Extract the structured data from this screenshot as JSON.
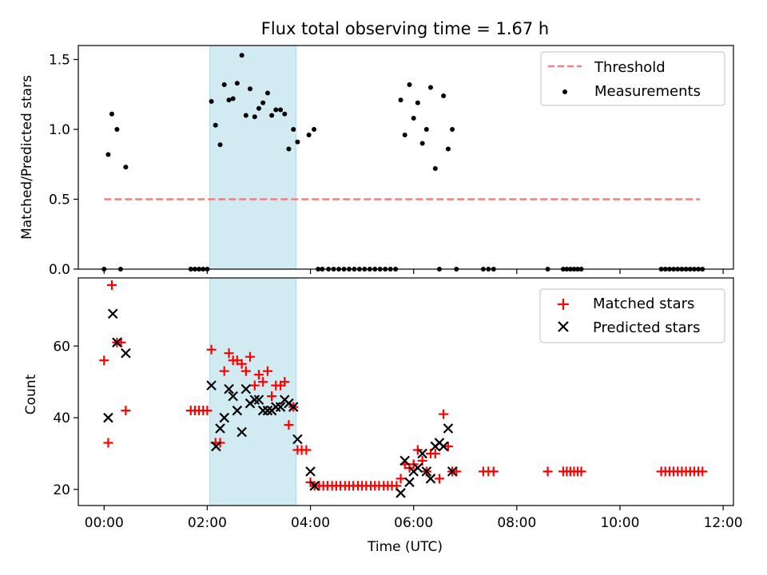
{
  "chart_data": [
    {
      "type": "scatter",
      "title": "Flux total observing time = 1.67 h",
      "xlabel": "",
      "ylabel": "Matched/Predicted stars",
      "xlim": [
        -0.5,
        12.2
      ],
      "ylim": [
        0,
        1.6
      ],
      "yticks": [
        0.0,
        0.5,
        1.0,
        1.5
      ],
      "ytick_labels": [
        "0.0",
        "0.5",
        "1.0",
        "1.5"
      ],
      "xticks": [
        0,
        2,
        4,
        6,
        8,
        10,
        12
      ],
      "shaded_region": {
        "x0": 2.05,
        "x1": 3.72,
        "color": "#add8e6"
      },
      "legend": {
        "placement": "upper-right",
        "entries": [
          "Threshold",
          "Measurements"
        ]
      },
      "threshold": {
        "name": "Threshold",
        "x": [
          0.0,
          11.55
        ],
        "y": 0.5,
        "color": "#f08080",
        "style": "dashed"
      },
      "series": [
        {
          "name": "Measurements",
          "color": "#000000",
          "marker": "dot",
          "points": [
            [
              0.0,
              0.0
            ],
            [
              0.08,
              0.82
            ],
            [
              0.15,
              1.11
            ],
            [
              0.25,
              1.0
            ],
            [
              0.32,
              0.0
            ],
            [
              0.42,
              0.73
            ],
            [
              1.68,
              0.0
            ],
            [
              1.76,
              0.0
            ],
            [
              1.84,
              0.0
            ],
            [
              1.92,
              0.0
            ],
            [
              2.0,
              0.0
            ],
            [
              2.08,
              1.2
            ],
            [
              2.16,
              1.03
            ],
            [
              2.25,
              0.89
            ],
            [
              2.33,
              1.32
            ],
            [
              2.42,
              1.21
            ],
            [
              2.5,
              1.22
            ],
            [
              2.58,
              1.33
            ],
            [
              2.67,
              1.53
            ],
            [
              2.75,
              1.1
            ],
            [
              2.83,
              1.29
            ],
            [
              2.92,
              1.09
            ],
            [
              3.0,
              1.15
            ],
            [
              3.08,
              1.19
            ],
            [
              3.17,
              1.26
            ],
            [
              3.25,
              1.1
            ],
            [
              3.33,
              1.14
            ],
            [
              3.42,
              1.14
            ],
            [
              3.5,
              1.11
            ],
            [
              3.58,
              0.86
            ],
            [
              3.67,
              1.0
            ],
            [
              3.75,
              0.91
            ],
            [
              3.97,
              0.96
            ],
            [
              4.07,
              1.0
            ],
            [
              4.15,
              0.0
            ],
            [
              4.23,
              0.0
            ],
            [
              4.35,
              0.0
            ],
            [
              4.45,
              0.0
            ],
            [
              4.55,
              0.0
            ],
            [
              4.65,
              0.0
            ],
            [
              4.75,
              0.0
            ],
            [
              4.85,
              0.0
            ],
            [
              4.95,
              0.0
            ],
            [
              5.05,
              0.0
            ],
            [
              5.15,
              0.0
            ],
            [
              5.25,
              0.0
            ],
            [
              5.35,
              0.0
            ],
            [
              5.45,
              0.0
            ],
            [
              5.55,
              0.0
            ],
            [
              5.65,
              0.0
            ],
            [
              5.75,
              1.21
            ],
            [
              5.83,
              0.96
            ],
            [
              5.92,
              1.32
            ],
            [
              6.0,
              1.08
            ],
            [
              6.08,
              1.19
            ],
            [
              6.17,
              0.9
            ],
            [
              6.25,
              1.0
            ],
            [
              6.33,
              1.3
            ],
            [
              6.42,
              0.72
            ],
            [
              6.5,
              0.0
            ],
            [
              6.58,
              1.24
            ],
            [
              6.67,
              0.86
            ],
            [
              6.75,
              1.0
            ],
            [
              6.83,
              0.0
            ],
            [
              7.35,
              0.0
            ],
            [
              7.45,
              0.0
            ],
            [
              7.55,
              0.0
            ],
            [
              8.6,
              0.0
            ],
            [
              8.9,
              0.0
            ],
            [
              8.97,
              0.0
            ],
            [
              9.04,
              0.0
            ],
            [
              9.11,
              0.0
            ],
            [
              9.18,
              0.0
            ],
            [
              9.25,
              0.0
            ],
            [
              10.8,
              0.0
            ],
            [
              10.88,
              0.0
            ],
            [
              10.96,
              0.0
            ],
            [
              11.04,
              0.0
            ],
            [
              11.12,
              0.0
            ],
            [
              11.2,
              0.0
            ],
            [
              11.28,
              0.0
            ],
            [
              11.36,
              0.0
            ],
            [
              11.44,
              0.0
            ],
            [
              11.52,
              0.0
            ],
            [
              11.6,
              0.0
            ]
          ]
        }
      ]
    },
    {
      "type": "scatter",
      "title": "",
      "xlabel": "Time (UTC)",
      "ylabel": "Count",
      "xlim": [
        -0.5,
        12.2
      ],
      "ylim": [
        15.5,
        79
      ],
      "yticks": [
        20,
        40,
        60
      ],
      "ytick_labels": [
        "20",
        "40",
        "60"
      ],
      "xticks": [
        0,
        2,
        4,
        6,
        8,
        10,
        12
      ],
      "xtick_labels": [
        "00:00",
        "02:00",
        "04:00",
        "06:00",
        "08:00",
        "10:00",
        "12:00"
      ],
      "shaded_region": {
        "x0": 2.05,
        "x1": 3.72,
        "color": "#add8e6"
      },
      "legend": {
        "placement": "upper-right",
        "entries": [
          "Matched stars",
          "Predicted stars"
        ]
      },
      "series": [
        {
          "name": "Matched stars",
          "color": "#ff0000",
          "marker": "plus",
          "points": [
            [
              0.0,
              56
            ],
            [
              0.08,
              33
            ],
            [
              0.15,
              77
            ],
            [
              0.25,
              61
            ],
            [
              0.33,
              61
            ],
            [
              0.42,
              42
            ],
            [
              1.68,
              42
            ],
            [
              1.76,
              42
            ],
            [
              1.84,
              42
            ],
            [
              1.92,
              42
            ],
            [
              2.0,
              42
            ],
            [
              2.08,
              59
            ],
            [
              2.16,
              33
            ],
            [
              2.25,
              33
            ],
            [
              2.33,
              53
            ],
            [
              2.42,
              58
            ],
            [
              2.5,
              56
            ],
            [
              2.58,
              56
            ],
            [
              2.67,
              55
            ],
            [
              2.75,
              53
            ],
            [
              2.83,
              57
            ],
            [
              2.92,
              49
            ],
            [
              3.0,
              52
            ],
            [
              3.08,
              50
            ],
            [
              3.17,
              53
            ],
            [
              3.25,
              46
            ],
            [
              3.33,
              49
            ],
            [
              3.42,
              49
            ],
            [
              3.5,
              50
            ],
            [
              3.58,
              38
            ],
            [
              3.67,
              43
            ],
            [
              3.75,
              31
            ],
            [
              3.83,
              31
            ],
            [
              3.92,
              31
            ],
            [
              4.0,
              22
            ],
            [
              4.08,
              21
            ],
            [
              4.17,
              21
            ],
            [
              4.25,
              21
            ],
            [
              4.33,
              21
            ],
            [
              4.42,
              21
            ],
            [
              4.5,
              21
            ],
            [
              4.58,
              21
            ],
            [
              4.67,
              21
            ],
            [
              4.75,
              21
            ],
            [
              4.83,
              21
            ],
            [
              4.92,
              21
            ],
            [
              5.0,
              21
            ],
            [
              5.08,
              21
            ],
            [
              5.17,
              21
            ],
            [
              5.25,
              21
            ],
            [
              5.33,
              21
            ],
            [
              5.42,
              21
            ],
            [
              5.5,
              21
            ],
            [
              5.58,
              21
            ],
            [
              5.67,
              21
            ],
            [
              5.75,
              23
            ],
            [
              5.83,
              27
            ],
            [
              5.92,
              26
            ],
            [
              6.0,
              27
            ],
            [
              6.08,
              31
            ],
            [
              6.17,
              28
            ],
            [
              6.25,
              25
            ],
            [
              6.33,
              30
            ],
            [
              6.42,
              30
            ],
            [
              6.5,
              23
            ],
            [
              6.58,
              41
            ],
            [
              6.67,
              32
            ],
            [
              6.75,
              25
            ],
            [
              6.83,
              25
            ],
            [
              7.35,
              25
            ],
            [
              7.45,
              25
            ],
            [
              7.55,
              25
            ],
            [
              8.6,
              25
            ],
            [
              8.9,
              25
            ],
            [
              8.97,
              25
            ],
            [
              9.04,
              25
            ],
            [
              9.11,
              25
            ],
            [
              9.18,
              25
            ],
            [
              9.25,
              25
            ],
            [
              10.8,
              25
            ],
            [
              10.88,
              25
            ],
            [
              10.96,
              25
            ],
            [
              11.04,
              25
            ],
            [
              11.12,
              25
            ],
            [
              11.2,
              25
            ],
            [
              11.28,
              25
            ],
            [
              11.36,
              25
            ],
            [
              11.44,
              25
            ],
            [
              11.52,
              25
            ],
            [
              11.6,
              25
            ]
          ]
        },
        {
          "name": "Predicted stars",
          "color": "#000000",
          "marker": "x",
          "points": [
            [
              0.08,
              40
            ],
            [
              0.17,
              69
            ],
            [
              0.25,
              61
            ],
            [
              0.42,
              58
            ],
            [
              2.08,
              49
            ],
            [
              2.17,
              32
            ],
            [
              2.25,
              37
            ],
            [
              2.33,
              40
            ],
            [
              2.42,
              48
            ],
            [
              2.5,
              46
            ],
            [
              2.58,
              42
            ],
            [
              2.67,
              36
            ],
            [
              2.75,
              48
            ],
            [
              2.83,
              44
            ],
            [
              2.92,
              45
            ],
            [
              3.0,
              45
            ],
            [
              3.08,
              42
            ],
            [
              3.17,
              42
            ],
            [
              3.25,
              42
            ],
            [
              3.33,
              43
            ],
            [
              3.42,
              43
            ],
            [
              3.5,
              45
            ],
            [
              3.58,
              44
            ],
            [
              3.67,
              43
            ],
            [
              3.75,
              34
            ],
            [
              4.0,
              25
            ],
            [
              4.08,
              21
            ],
            [
              5.75,
              19
            ],
            [
              5.83,
              28
            ],
            [
              5.92,
              22
            ],
            [
              6.0,
              25
            ],
            [
              6.08,
              26
            ],
            [
              6.17,
              30
            ],
            [
              6.25,
              25
            ],
            [
              6.33,
              23
            ],
            [
              6.42,
              32
            ],
            [
              6.5,
              33
            ],
            [
              6.58,
              32
            ],
            [
              6.67,
              37
            ],
            [
              6.75,
              25
            ]
          ]
        }
      ]
    }
  ]
}
